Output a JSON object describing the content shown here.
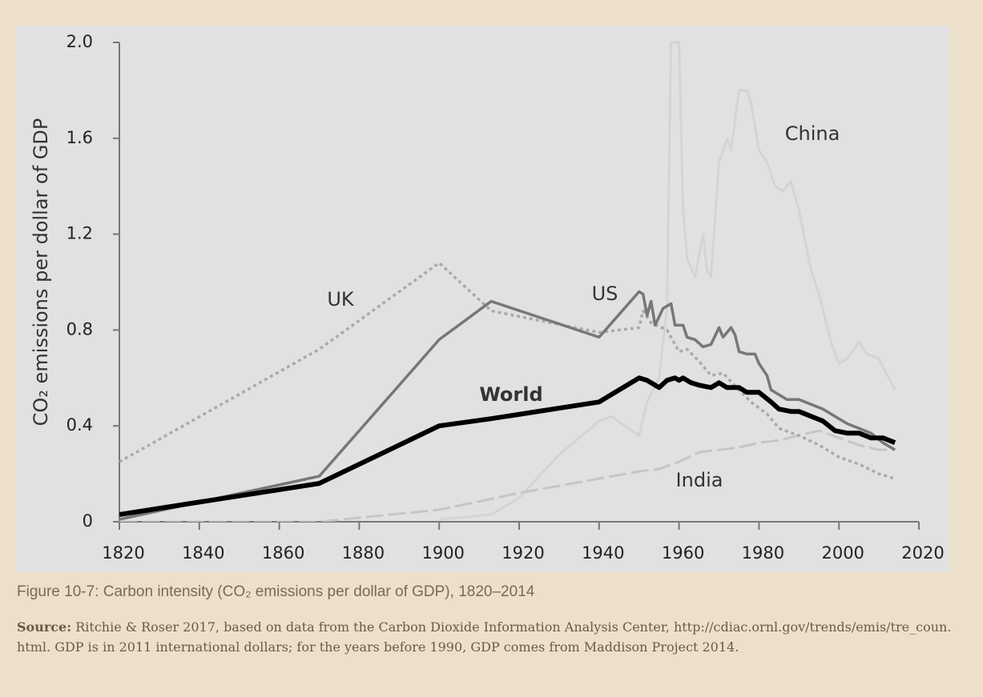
{
  "chart_data": {
    "type": "line",
    "ylabel": "CO₂ emissions per dollar of GDP",
    "xlim": [
      1820,
      2020
    ],
    "xticks": [
      1820,
      1840,
      1860,
      1880,
      1900,
      1920,
      1940,
      1960,
      1980,
      2000,
      2020
    ],
    "ylim": [
      0,
      2
    ],
    "yticks": [
      0,
      0.4,
      0.8,
      1.2,
      1.6,
      {
        "value": 2,
        "label": "2.0"
      }
    ],
    "series": [
      {
        "name": "China",
        "color": "#d4d4d4",
        "linestyle": "solid",
        "x": [
          1900,
          1913,
          1920,
          1930,
          1940,
          1943,
          1950,
          1952,
          1955,
          1957,
          1958,
          1960,
          1961,
          1962,
          1964,
          1966,
          1967,
          1968,
          1970,
          1972,
          1973,
          1975,
          1977,
          1978,
          1980,
          1982,
          1984,
          1986,
          1988,
          1990,
          1993,
          1995,
          1998,
          2000,
          2002,
          2005,
          2007,
          2010,
          2014
        ],
        "values": [
          0.01,
          0.03,
          0.1,
          0.28,
          0.42,
          0.44,
          0.36,
          0.5,
          0.6,
          0.9,
          2.0,
          2.0,
          1.3,
          1.1,
          1.02,
          1.2,
          1.05,
          1.02,
          1.5,
          1.6,
          1.55,
          1.8,
          1.8,
          1.75,
          1.55,
          1.5,
          1.4,
          1.38,
          1.42,
          1.3,
          1.05,
          0.95,
          0.75,
          0.66,
          0.68,
          0.75,
          0.7,
          0.68,
          0.55
        ]
      },
      {
        "name": "India",
        "color": "#c6c6c6",
        "linestyle": "dashed",
        "x": [
          1820,
          1870,
          1900,
          1920,
          1940,
          1950,
          1955,
          1960,
          1965,
          1970,
          1975,
          1980,
          1985,
          1990,
          1995,
          2000,
          2005,
          2010,
          2014
        ],
        "values": [
          0,
          0,
          0.05,
          0.12,
          0.18,
          0.21,
          0.22,
          0.25,
          0.29,
          0.3,
          0.31,
          0.33,
          0.34,
          0.36,
          0.38,
          0.35,
          0.32,
          0.3,
          0.3
        ]
      },
      {
        "name": "UK",
        "color": "#aaaaaa",
        "linestyle": "dotted",
        "x": [
          1820,
          1870,
          1900,
          1913,
          1940,
          1950,
          1951,
          1953,
          1957,
          1960,
          1962,
          1965,
          1968,
          1971,
          1975,
          1978,
          1982,
          1985,
          1990,
          1995,
          2000,
          2005,
          2010,
          2014
        ],
        "values": [
          0.25,
          0.72,
          1.08,
          0.88,
          0.79,
          0.81,
          0.88,
          0.83,
          0.8,
          0.71,
          0.72,
          0.67,
          0.61,
          0.62,
          0.55,
          0.5,
          0.45,
          0.39,
          0.36,
          0.32,
          0.27,
          0.24,
          0.2,
          0.18
        ]
      },
      {
        "name": "US",
        "color": "#777777",
        "linestyle": "solid",
        "x": [
          1820,
          1870,
          1900,
          1913,
          1940,
          1950,
          1951,
          1952,
          1953,
          1954,
          1956,
          1958,
          1959,
          1961,
          1962,
          1964,
          1966,
          1968,
          1970,
          1971,
          1973,
          1974,
          1975,
          1977,
          1979,
          1980,
          1982,
          1983,
          1985,
          1987,
          1990,
          1993,
          1996,
          1999,
          2002,
          2005,
          2008,
          2011,
          2014
        ],
        "values": [
          0.01,
          0.19,
          0.76,
          0.92,
          0.77,
          0.96,
          0.95,
          0.86,
          0.92,
          0.82,
          0.89,
          0.91,
          0.82,
          0.82,
          0.77,
          0.76,
          0.73,
          0.74,
          0.81,
          0.77,
          0.81,
          0.78,
          0.71,
          0.7,
          0.7,
          0.66,
          0.61,
          0.55,
          0.53,
          0.51,
          0.51,
          0.49,
          0.47,
          0.44,
          0.41,
          0.39,
          0.37,
          0.33,
          0.3
        ]
      },
      {
        "name": "World",
        "color": "#000000",
        "linestyle": "solid",
        "x": [
          1820,
          1870,
          1900,
          1913,
          1940,
          1950,
          1952,
          1955,
          1957,
          1959,
          1960,
          1961,
          1963,
          1965,
          1968,
          1970,
          1972,
          1975,
          1977,
          1980,
          1983,
          1985,
          1988,
          1990,
          1993,
          1996,
          1999,
          2002,
          2005,
          2008,
          2011,
          2014
        ],
        "values": [
          0.03,
          0.16,
          0.4,
          0.43,
          0.5,
          0.6,
          0.59,
          0.56,
          0.59,
          0.6,
          0.59,
          0.6,
          0.58,
          0.57,
          0.56,
          0.58,
          0.56,
          0.56,
          0.54,
          0.54,
          0.5,
          0.47,
          0.46,
          0.46,
          0.44,
          0.42,
          0.38,
          0.37,
          0.37,
          0.35,
          0.35,
          0.33
        ]
      }
    ]
  },
  "caption": "Figure 10-7: Carbon intensity (CO₂ emissions per dollar of GDP), 1820–2014",
  "source": {
    "label": "Source:",
    "text": "Ritchie & Roser 2017, based on data from the Carbon Dioxide Information Analysis Center, http://cdiac.ornl.gov/trends/emis/tre_coun.html. GDP is in 2011 international dollars; for the years before 1990, GDP comes from Maddison Project 2014."
  }
}
